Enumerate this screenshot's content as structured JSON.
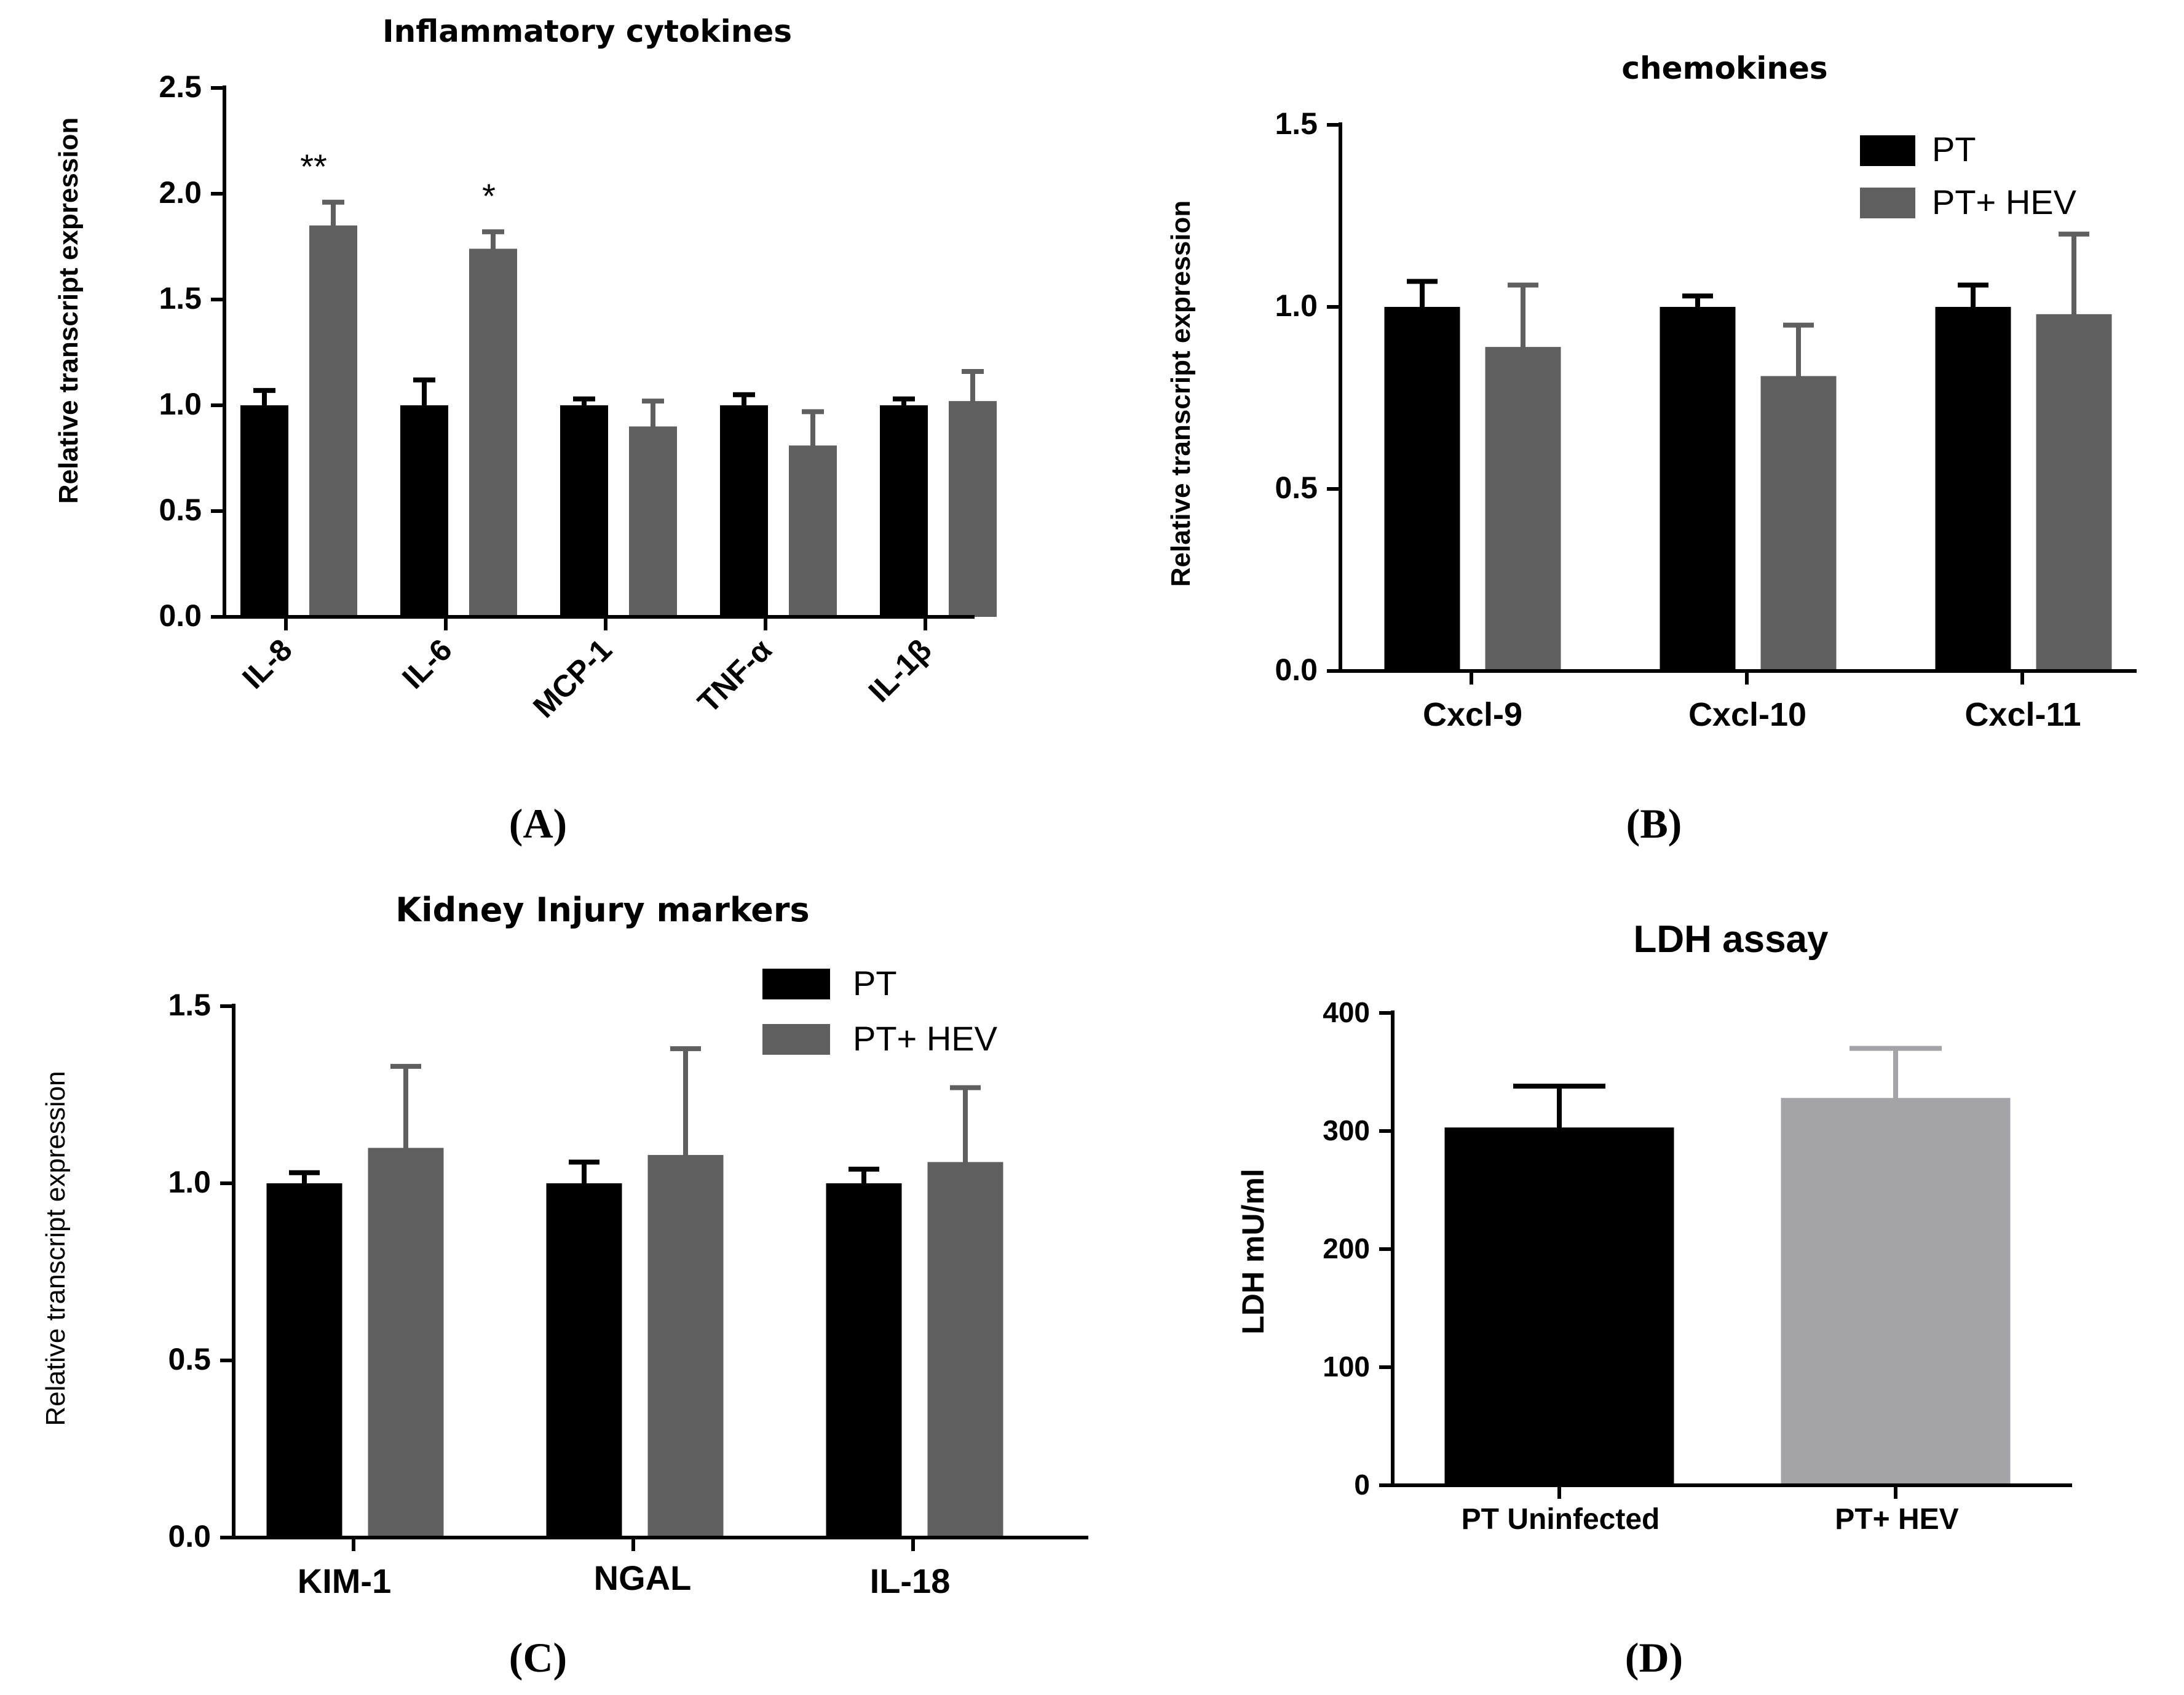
{
  "colors": {
    "pt": "#000000",
    "hev": "#5f5f5f",
    "hev_light": "#a3a3a8",
    "axis": "#000000"
  },
  "chart_data": [
    {
      "panel": "(A)",
      "type": "bar",
      "title": "Inflammatory cytokines",
      "ylabel": "Relative transcript expression",
      "xlabel": "",
      "ylim": [
        0,
        2.5
      ],
      "yticks": [
        "0.0",
        "0.5",
        "1.0",
        "1.5",
        "2.0",
        "2.5"
      ],
      "categories": [
        "IL-8",
        "IL-6",
        "MCP-1",
        "TNF-α",
        "IL-1β"
      ],
      "series": [
        {
          "name": "PT",
          "color": "#000000",
          "values": [
            1.0,
            1.0,
            1.0,
            1.0,
            1.0
          ],
          "errors": [
            0.07,
            0.12,
            0.03,
            0.05,
            0.03
          ]
        },
        {
          "name": "PT+ HEV",
          "color": "#5f5f5f",
          "values": [
            1.85,
            1.74,
            0.9,
            0.81,
            1.02
          ],
          "errors": [
            0.11,
            0.08,
            0.12,
            0.16,
            0.14
          ]
        }
      ],
      "annotations": [
        "**",
        "*",
        "",
        "",
        ""
      ],
      "legend": null
    },
    {
      "panel": "(B)",
      "type": "bar",
      "title": "chemokines",
      "ylabel": "Relative transcript expression",
      "xlabel": "",
      "ylim": [
        0,
        1.5
      ],
      "yticks": [
        "0.0",
        "0.5",
        "1.0",
        "1.5"
      ],
      "categories": [
        "Cxcl-9",
        "Cxcl-10",
        "Cxcl-11"
      ],
      "series": [
        {
          "name": "PT",
          "color": "#000000",
          "values": [
            1.0,
            1.0,
            1.0
          ],
          "errors": [
            0.07,
            0.03,
            0.06
          ]
        },
        {
          "name": "PT+ HEV",
          "color": "#5f5f5f",
          "values": [
            0.89,
            0.81,
            0.98
          ],
          "errors": [
            0.17,
            0.14,
            0.22
          ]
        }
      ],
      "legend": {
        "position": "top-right",
        "entries": [
          "PT",
          "PT+ HEV"
        ]
      }
    },
    {
      "panel": "(C)",
      "type": "bar",
      "title": "Kidney Injury markers",
      "ylabel": "Relative transcript expression",
      "xlabel": "",
      "ylim": [
        0,
        1.5
      ],
      "yticks": [
        "0.0",
        "0.5",
        "1.0",
        "1.5"
      ],
      "categories": [
        "KIM-1",
        "NGAL",
        "IL-18"
      ],
      "series": [
        {
          "name": "PT",
          "color": "#000000",
          "values": [
            1.0,
            1.0,
            1.0
          ],
          "errors": [
            0.03,
            0.06,
            0.04
          ]
        },
        {
          "name": "PT+ HEV",
          "color": "#5f5f5f",
          "values": [
            1.1,
            1.08,
            1.06
          ],
          "errors": [
            0.23,
            0.3,
            0.21
          ]
        }
      ],
      "legend": {
        "position": "top-right",
        "entries": [
          "PT",
          "PT+ HEV"
        ]
      }
    },
    {
      "panel": "(D)",
      "type": "bar",
      "title": "LDH assay",
      "ylabel": "LDH mU/ml",
      "xlabel": "",
      "ylim": [
        0,
        400
      ],
      "yticks": [
        "0",
        "100",
        "200",
        "300",
        "400"
      ],
      "categories": [
        "PT Uninfected",
        "PT+ HEV"
      ],
      "series": [
        {
          "name": "LDH",
          "colors": [
            "#000000",
            "#a3a3a8"
          ],
          "values": [
            303,
            328
          ],
          "errors": [
            35,
            42
          ]
        }
      ],
      "legend": null
    }
  ]
}
